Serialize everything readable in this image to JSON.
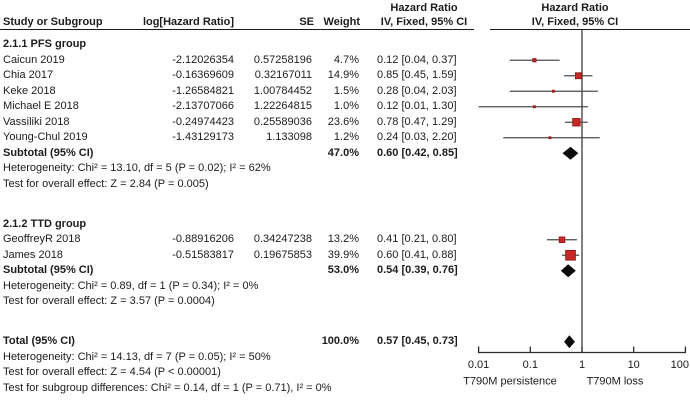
{
  "headers": {
    "study": "Study or Subgroup",
    "log_hr": "log[Hazard Ratio]",
    "se": "SE",
    "weight": "Weight",
    "effect_line1": "Hazard Ratio",
    "effect_line2": "IV, Fixed, 95% CI",
    "plot_line1": "Hazard Ratio",
    "plot_line2": "IV, Fixed, 95% CI"
  },
  "chart_data": {
    "type": "forest",
    "scale": "log10",
    "axis": {
      "ticks": [
        0.01,
        0.1,
        1,
        10,
        100
      ],
      "tick_labels": [
        "0.01",
        "0.1",
        "1",
        "10",
        "100"
      ],
      "min": 0.01,
      "max": 100,
      "reference": 1,
      "left_label": "T790M persistence",
      "right_label": "T790M loss"
    },
    "groups": [
      {
        "name": "2.1.1 PFS group",
        "studies": [
          {
            "name": "Caicun 2019",
            "log_hr": "-2.12026354",
            "se": "0.57258196",
            "weight": "4.7%",
            "weight_value": 4.7,
            "ci_text": "0.12 [0.04, 0.37]",
            "hr": 0.12,
            "lo": 0.04,
            "hi": 0.37
          },
          {
            "name": "Chia 2017",
            "log_hr": "-0.16369609",
            "se": "0.32167011",
            "weight": "14.9%",
            "weight_value": 14.9,
            "ci_text": "0.85 [0.45, 1.59]",
            "hr": 0.85,
            "lo": 0.45,
            "hi": 1.59
          },
          {
            "name": "Keke 2018",
            "log_hr": "-1.26584821",
            "se": "1.00784452",
            "weight": "1.5%",
            "weight_value": 1.5,
            "ci_text": "0.28 [0.04, 2.03]",
            "hr": 0.28,
            "lo": 0.04,
            "hi": 2.03
          },
          {
            "name": "Michael E 2018",
            "log_hr": "-2.13707066",
            "se": "1.22264815",
            "weight": "1.0%",
            "weight_value": 1.0,
            "ci_text": "0.12 [0.01, 1.30]",
            "hr": 0.12,
            "lo": 0.01,
            "hi": 1.3
          },
          {
            "name": "Vassiliki 2018",
            "log_hr": "-0.24974423",
            "se": "0.25589036",
            "weight": "23.6%",
            "weight_value": 23.6,
            "ci_text": "0.78 [0.47, 1.29]",
            "hr": 0.78,
            "lo": 0.47,
            "hi": 1.29
          },
          {
            "name": "Young-Chul 2019",
            "log_hr": "-1.43129173",
            "se": "1.133098",
            "weight": "1.2%",
            "weight_value": 1.2,
            "ci_text": "0.24 [0.03, 2.20]",
            "hr": 0.24,
            "lo": 0.03,
            "hi": 2.2
          }
        ],
        "subtotal": {
          "label": "Subtotal (95% CI)",
          "weight": "47.0%",
          "ci_text": "0.60 [0.42, 0.85]",
          "hr": 0.6,
          "lo": 0.42,
          "hi": 0.85
        },
        "heterogeneity": "Heterogeneity: Chi² = 13.10, df = 5 (P = 0.02); I² = 62%",
        "overall_effect": "Test for overall effect: Z = 2.84 (P = 0.005)"
      },
      {
        "name": "2.1.2 TTD group",
        "studies": [
          {
            "name": "GeoffreyR 2018",
            "log_hr": "-0.88916206",
            "se": "0.34247238",
            "weight": "13.2%",
            "weight_value": 13.2,
            "ci_text": "0.41 [0.21, 0.80]",
            "hr": 0.41,
            "lo": 0.21,
            "hi": 0.8
          },
          {
            "name": "James 2018",
            "log_hr": "-0.51583817",
            "se": "0.19675853",
            "weight": "39.9%",
            "weight_value": 39.9,
            "ci_text": "0.60 [0.41, 0.88]",
            "hr": 0.6,
            "lo": 0.41,
            "hi": 0.88
          }
        ],
        "subtotal": {
          "label": "Subtotal (95% CI)",
          "weight": "53.0%",
          "ci_text": "0.54 [0.39, 0.76]",
          "hr": 0.54,
          "lo": 0.39,
          "hi": 0.76
        },
        "heterogeneity": "Heterogeneity: Chi² = 0.89, df = 1 (P = 0.34); I² = 0%",
        "overall_effect": "Test for overall effect: Z = 3.57 (P = 0.0004)"
      }
    ],
    "total": {
      "label": "Total (95% CI)",
      "weight": "100.0%",
      "ci_text": "0.57 [0.45, 0.73]",
      "hr": 0.57,
      "lo": 0.45,
      "hi": 0.73
    },
    "total_heterogeneity": "Heterogeneity: Chi² = 14.13, df = 7 (P = 0.05); I² = 50%",
    "total_overall_effect": "Test for overall effect: Z = 4.54 (P < 0.00001)",
    "subgroup_differences": "Test for subgroup differences: Chi² = 0.14, df = 1 (P = 0.71), I² = 0%"
  },
  "colors": {
    "marker_fill": "#c62828",
    "marker_border": "#8e1410",
    "ci_line": "#4d4d4d",
    "diamond": "#0a0a0a",
    "axis": "#2b2b2b",
    "text": "#1c1c1c"
  }
}
